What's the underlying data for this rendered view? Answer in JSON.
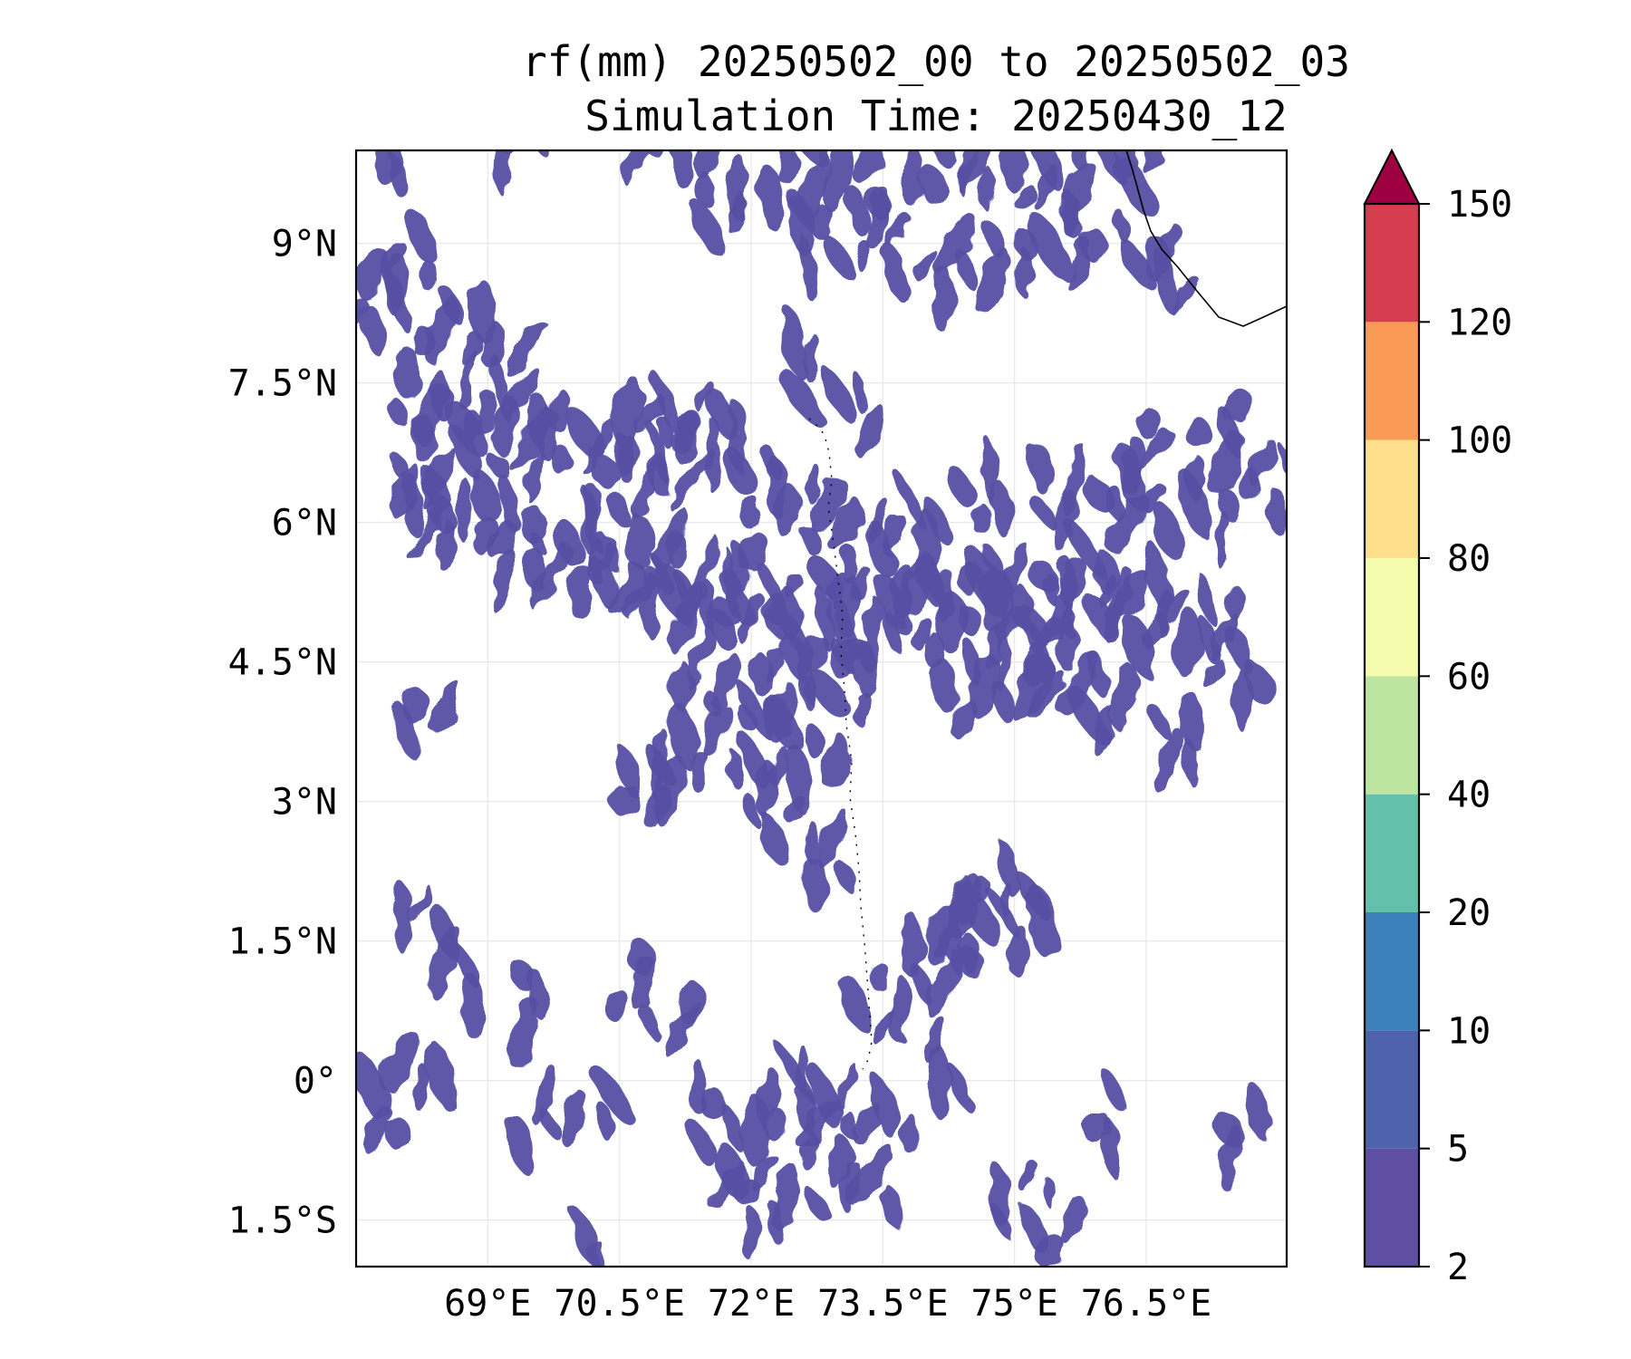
{
  "title": {
    "line1": "rf(mm) 20250502_00 to 20250502_03",
    "line2": "Simulation Time: 20250430_12"
  },
  "map": {
    "extent": {
      "lon_min": 67.5,
      "lon_max": 78.1,
      "lat_min": -2.0,
      "lat_max": 10.0
    },
    "lon_ticks": [
      {
        "value": 69.0,
        "label": "69°E"
      },
      {
        "value": 70.5,
        "label": "70.5°E"
      },
      {
        "value": 72.0,
        "label": "72°E"
      },
      {
        "value": 73.5,
        "label": "73.5°E"
      },
      {
        "value": 75.0,
        "label": "75°E"
      },
      {
        "value": 76.5,
        "label": "76.5°E"
      }
    ],
    "lat_ticks": [
      {
        "value": 9.0,
        "label": "9°N"
      },
      {
        "value": 7.5,
        "label": "7.5°N"
      },
      {
        "value": 6.0,
        "label": "6°N"
      },
      {
        "value": 4.5,
        "label": "4.5°N"
      },
      {
        "value": 3.0,
        "label": "3°N"
      },
      {
        "value": 1.5,
        "label": "1.5°N"
      },
      {
        "value": 0.0,
        "label": "0°"
      },
      {
        "value": -1.5,
        "label": "1.5°S"
      }
    ],
    "grid": true,
    "fill_color": "#5650a3"
  },
  "colorbar": {
    "extend": "max",
    "extend_color": "#9e0142",
    "levels": [
      {
        "value": 2,
        "label": "2"
      },
      {
        "value": 5,
        "label": "5"
      },
      {
        "value": 10,
        "label": "10"
      },
      {
        "value": 20,
        "label": "20"
      },
      {
        "value": 40,
        "label": "40"
      },
      {
        "value": 60,
        "label": "60"
      },
      {
        "value": 80,
        "label": "80"
      },
      {
        "value": 100,
        "label": "100"
      },
      {
        "value": 120,
        "label": "120"
      },
      {
        "value": 150,
        "label": "150"
      }
    ],
    "colors": [
      "#5e4fa2",
      "#4f62ac",
      "#3b80bb",
      "#62c0ab",
      "#bde4a0",
      "#f4fbac",
      "#fddf8b",
      "#f99a57",
      "#d53e4f"
    ]
  },
  "rain_cells": [
    [
      69.4,
      5.8,
      6
    ],
    [
      70.1,
      5.6,
      7
    ],
    [
      70.8,
      5.5,
      8
    ],
    [
      71.4,
      5.3,
      8
    ],
    [
      72.0,
      5.2,
      8
    ],
    [
      72.6,
      5.0,
      7
    ],
    [
      73.2,
      5.0,
      7
    ],
    [
      73.9,
      5.1,
      8
    ],
    [
      74.6,
      5.2,
      8
    ],
    [
      75.3,
      5.2,
      9
    ],
    [
      75.9,
      5.3,
      7
    ],
    [
      76.5,
      5.0,
      6
    ],
    [
      77.2,
      4.9,
      6
    ],
    [
      68.6,
      5.9,
      5
    ],
    [
      68.2,
      6.4,
      6
    ],
    [
      68.9,
      6.7,
      5
    ],
    [
      69.7,
      6.9,
      6
    ],
    [
      70.6,
      7.0,
      5
    ],
    [
      71.4,
      7.2,
      5
    ],
    [
      72.1,
      6.6,
      5
    ],
    [
      68.3,
      7.5,
      5
    ],
    [
      68.9,
      7.3,
      4
    ],
    [
      69.4,
      7.6,
      4
    ],
    [
      67.8,
      8.2,
      4
    ],
    [
      68.1,
      8.6,
      4
    ],
    [
      68.6,
      8.0,
      4
    ],
    [
      70.4,
      6.4,
      5
    ],
    [
      71.0,
      6.8,
      4
    ],
    [
      72.6,
      6.3,
      4
    ],
    [
      73.3,
      6.0,
      4
    ],
    [
      74.0,
      6.1,
      4
    ],
    [
      74.8,
      6.3,
      4
    ],
    [
      75.6,
      6.2,
      5
    ],
    [
      76.4,
      6.1,
      5
    ],
    [
      77.2,
      6.2,
      5
    ],
    [
      77.8,
      6.3,
      4
    ],
    [
      72.3,
      4.3,
      6
    ],
    [
      73.0,
      4.4,
      5
    ],
    [
      74.4,
      4.4,
      5
    ],
    [
      75.1,
      4.5,
      5
    ],
    [
      71.6,
      4.4,
      5
    ],
    [
      72.0,
      3.6,
      5
    ],
    [
      72.6,
      3.4,
      5
    ],
    [
      71.2,
      3.2,
      4
    ],
    [
      70.7,
      3.0,
      4
    ],
    [
      72.1,
      2.8,
      4
    ],
    [
      72.7,
      2.4,
      4
    ],
    [
      74.3,
      1.8,
      4
    ],
    [
      75.1,
      1.9,
      4
    ],
    [
      74.8,
      2.3,
      3
    ],
    [
      73.6,
      0.9,
      4
    ],
    [
      74.2,
      1.2,
      4
    ],
    [
      74.6,
      1.4,
      3
    ],
    [
      72.4,
      -0.4,
      4
    ],
    [
      72.8,
      -0.8,
      4
    ],
    [
      73.4,
      -0.6,
      3
    ],
    [
      71.8,
      -0.7,
      4
    ],
    [
      71.3,
      -0.2,
      3
    ],
    [
      69.5,
      -0.2,
      3
    ],
    [
      70.3,
      -0.1,
      3
    ],
    [
      68.4,
      0.2,
      3
    ],
    [
      68.0,
      -0.4,
      3
    ],
    [
      75.5,
      -1.7,
      4
    ],
    [
      75.0,
      -1.5,
      3
    ],
    [
      72.4,
      -1.6,
      3
    ],
    [
      73.2,
      -1.3,
      3
    ],
    [
      71.7,
      -1.3,
      3
    ],
    [
      70.0,
      -1.8,
      3
    ],
    [
      71.7,
      9.6,
      5
    ],
    [
      72.6,
      9.7,
      5
    ],
    [
      73.4,
      9.6,
      4
    ],
    [
      74.1,
      9.8,
      5
    ],
    [
      74.8,
      9.7,
      5
    ],
    [
      75.5,
      9.6,
      5
    ],
    [
      76.2,
      9.8,
      4
    ],
    [
      72.6,
      9.0,
      4
    ],
    [
      73.4,
      9.1,
      4
    ],
    [
      74.2,
      8.9,
      4
    ],
    [
      75.0,
      9.0,
      4
    ],
    [
      75.8,
      9.1,
      4
    ],
    [
      76.6,
      9.0,
      3
    ],
    [
      77.0,
      8.6,
      3
    ],
    [
      68.1,
      9.8,
      3
    ],
    [
      69.3,
      9.8,
      3
    ],
    [
      70.8,
      9.8,
      3
    ],
    [
      73.0,
      7.2,
      3
    ],
    [
      72.4,
      7.8,
      3
    ],
    [
      76.4,
      7.0,
      3
    ],
    [
      77.4,
      7.3,
      3
    ],
    [
      77.7,
      4.4,
      4
    ],
    [
      77.0,
      3.6,
      4
    ],
    [
      76.1,
      3.9,
      4
    ],
    [
      75.5,
      4.2,
      4
    ],
    [
      68.2,
      3.7,
      3
    ],
    [
      68.1,
      1.6,
      3
    ],
    [
      68.5,
      1.1,
      3
    ],
    [
      69.3,
      1.0,
      3
    ],
    [
      70.6,
      1.3,
      3
    ],
    [
      71.2,
      0.9,
      3
    ],
    [
      73.0,
      0.1,
      3
    ],
    [
      74.4,
      0.1,
      3
    ],
    [
      76.2,
      -0.6,
      3
    ],
    [
      77.6,
      -0.8,
      3
    ]
  ]
}
